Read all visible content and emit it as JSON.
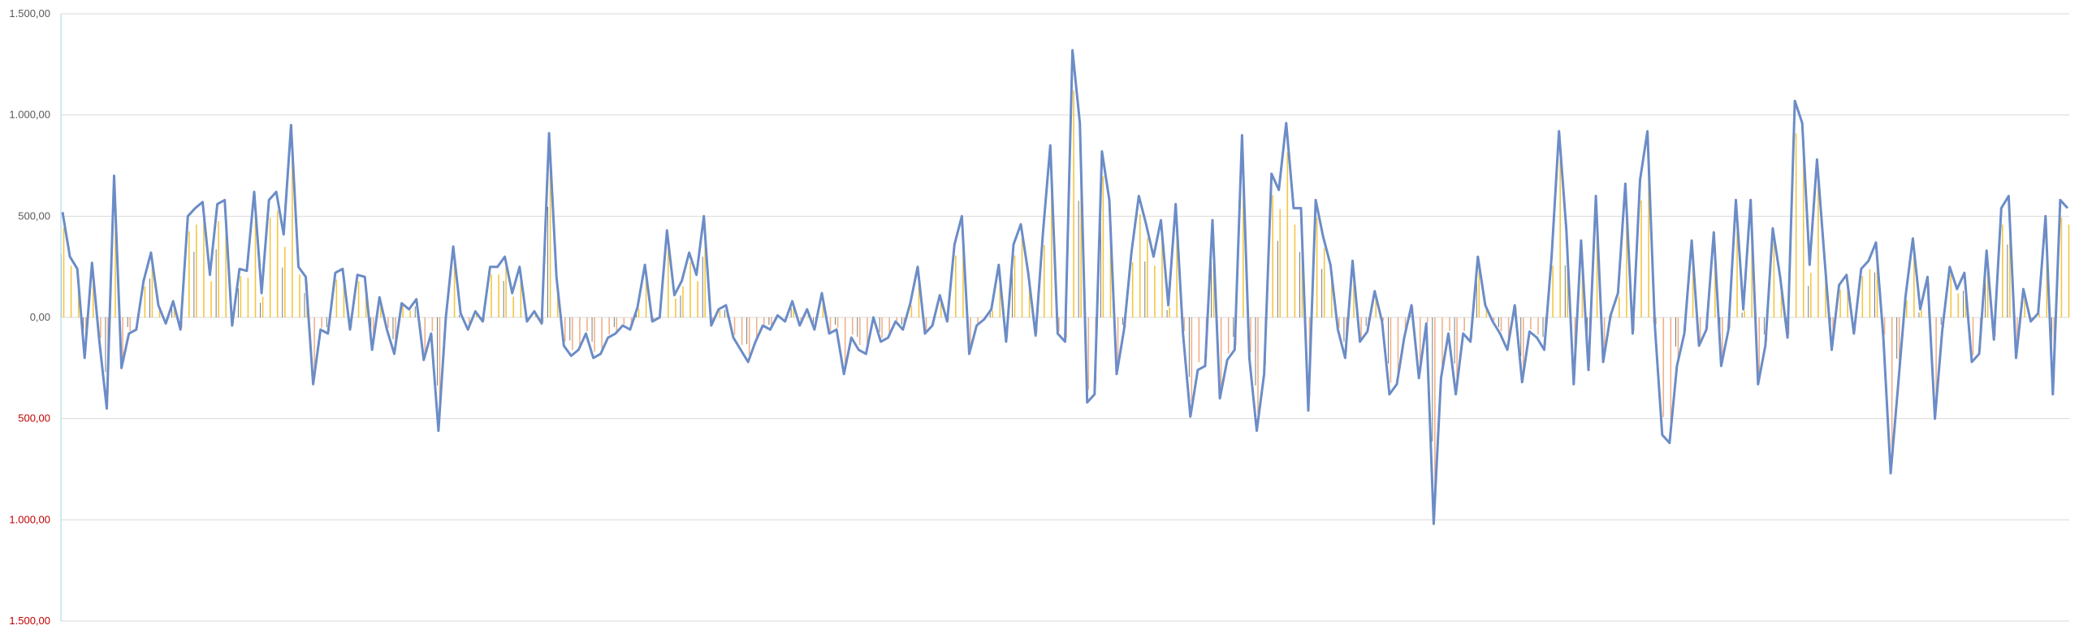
{
  "chart_data": {
    "type": "line",
    "title": "",
    "xlabel": "",
    "ylabel": "",
    "ylim": [
      -1500,
      1500
    ],
    "grid": true,
    "legend": "none",
    "y_ticks": [
      {
        "value": 1500,
        "label": "1.500,00",
        "negative": false
      },
      {
        "value": 1000,
        "label": "1.000,00",
        "negative": false
      },
      {
        "value": 500,
        "label": "500,00",
        "negative": false
      },
      {
        "value": 0,
        "label": "0,00",
        "negative": false
      },
      {
        "value": -500,
        "label": "500,00",
        "negative": true
      },
      {
        "value": -1000,
        "label": "1.000,00",
        "negative": true
      },
      {
        "value": -1500,
        "label": "1.500,00",
        "negative": true
      }
    ],
    "colors": {
      "line": "#6b8cc7",
      "bar_yellow": "#f2c744",
      "bar_orange": "#f0b18a",
      "bar_dark": "#5a5a5a",
      "negative_label": "#c00000",
      "positive_label": "#595959"
    },
    "series": [
      {
        "type": "line",
        "values": [
          520,
          300,
          240,
          -200,
          270,
          -120,
          -450,
          700,
          -250,
          -80,
          -60,
          180,
          320,
          60,
          -30,
          80,
          -60,
          500,
          540,
          570,
          210,
          560,
          580,
          -40,
          240,
          230,
          620,
          120,
          580,
          620,
          410,
          950,
          250,
          200,
          -330,
          -60,
          -80,
          220,
          240,
          -60,
          210,
          200,
          -160,
          100,
          -60,
          -180,
          70,
          40,
          90,
          -210,
          -80,
          -560,
          0,
          350,
          20,
          -60,
          30,
          -20,
          250,
          250,
          300,
          120,
          250,
          -20,
          30,
          -30,
          910,
          200,
          -140,
          -190,
          -160,
          -80,
          -200,
          -180,
          -100,
          -80,
          -40,
          -60,
          50,
          260,
          -20,
          0,
          430,
          110,
          180,
          320,
          210,
          500,
          -40,
          40,
          60,
          -100,
          -160,
          -220,
          -120,
          -40,
          -60,
          10,
          -20,
          80,
          -40,
          40,
          -60,
          120,
          -80,
          -60,
          -280,
          -100,
          -160,
          -180,
          0,
          -120,
          -100,
          -20,
          -60,
          70,
          250,
          -80,
          -40,
          110,
          -20,
          360,
          500,
          -180,
          -40,
          -10,
          40,
          260,
          -120,
          360,
          460,
          220,
          -90,
          420,
          850,
          -80,
          -120,
          1320,
          960,
          -420,
          -380,
          820,
          580,
          -280,
          -60,
          320,
          600,
          460,
          300,
          480,
          60,
          560,
          -80,
          -490,
          -260,
          -240,
          480,
          -400,
          -210,
          -160,
          900,
          -200,
          -560,
          -280,
          710,
          630,
          960,
          540,
          540,
          -460,
          580,
          400,
          260,
          -60,
          -200,
          280,
          -120,
          -70,
          130,
          -20,
          -380,
          -330,
          -100,
          60,
          -300,
          -30,
          -1020,
          -300,
          -80,
          -380,
          -80,
          -120,
          300,
          60,
          -20,
          -80,
          -160,
          60,
          -320,
          -70,
          -100,
          -160,
          300,
          920,
          430,
          -330,
          380,
          -260,
          600,
          -220,
          10,
          120,
          660,
          -80,
          680,
          920,
          -40,
          -580,
          -620,
          -240,
          -80,
          380,
          -140,
          -60,
          420,
          -240,
          -60,
          580,
          40,
          580,
          -330,
          -140,
          440,
          200,
          -100,
          1070,
          960,
          260,
          780,
          300,
          -160,
          160,
          210,
          -80,
          240,
          280,
          370,
          -100,
          -770,
          -340,
          100,
          390,
          40,
          200,
          -500,
          -60,
          250,
          140,
          220,
          -220,
          -180,
          330,
          -110,
          540,
          600,
          -200,
          140,
          -20,
          20,
          500,
          -380,
          580,
          540
        ]
      }
    ]
  }
}
